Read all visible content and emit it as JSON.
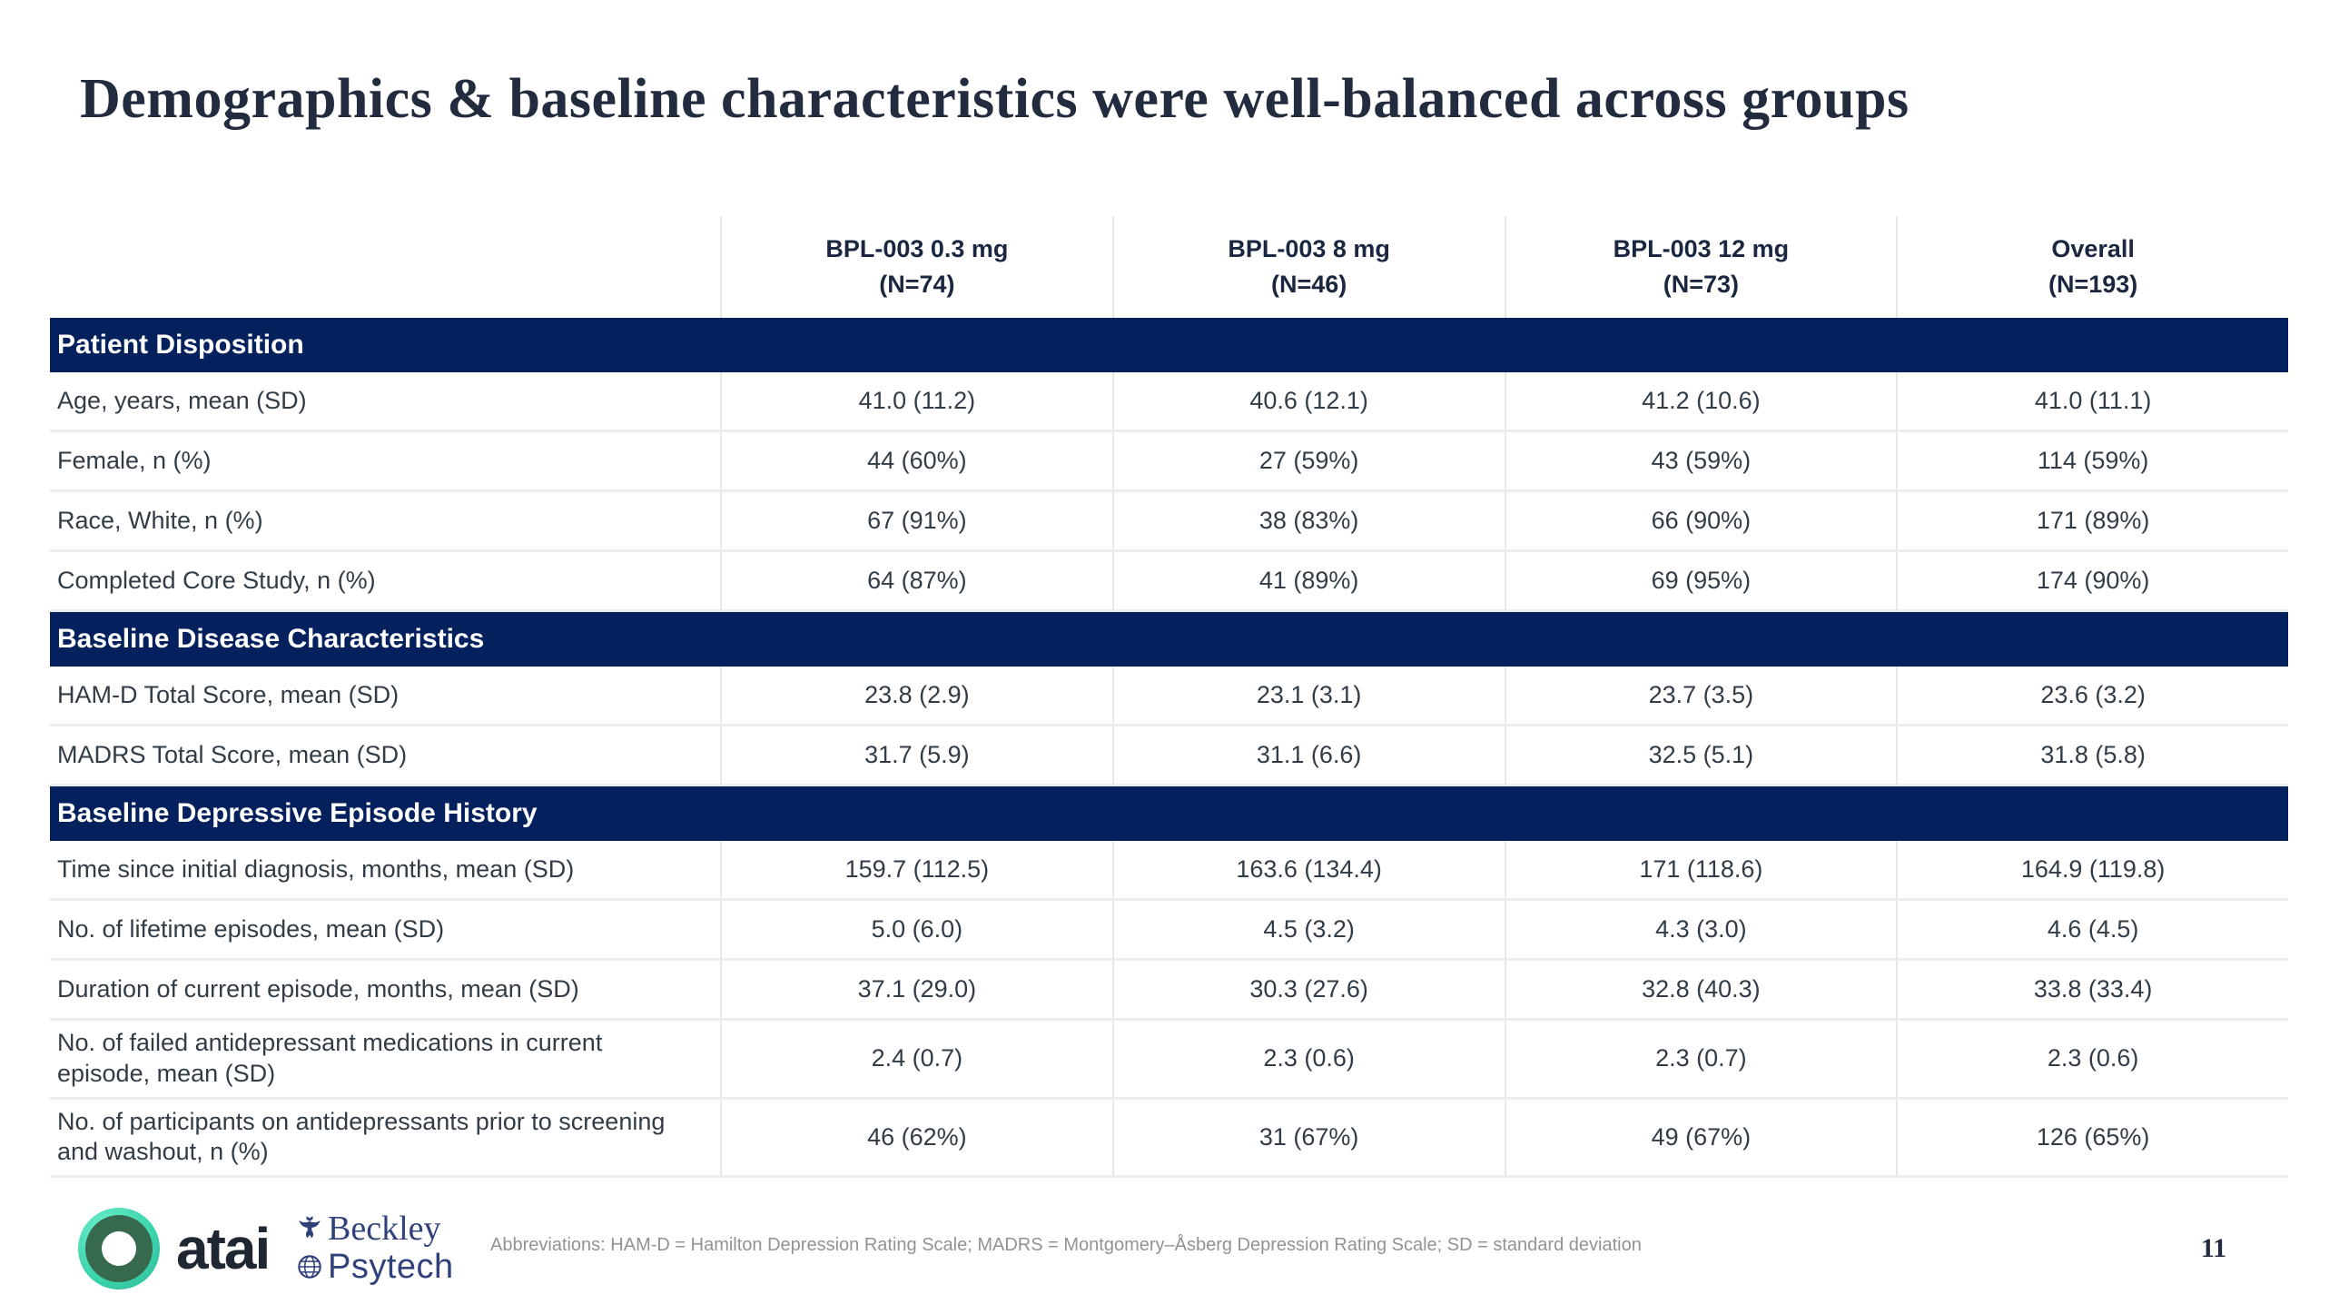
{
  "slide": {
    "title": "Demographics & baseline characteristics were well-balanced across groups",
    "page_number": "11",
    "footnote": "Abbreviations: HAM-D = Hamilton Depression Rating Scale; MADRS = Montgomery–Åsberg Depression Rating Scale; SD = standard deviation"
  },
  "logos": {
    "atai_wordmark": "atai",
    "beckley_line1": "Beckley",
    "beckley_line2": "Psytech"
  },
  "colors": {
    "section_band_navy": "#04215e",
    "title_text": "#222c3e",
    "body_text": "#323c47",
    "footnote_gray": "#8f9396",
    "beckley_navy": "#31417c",
    "atai_teal": "#3bd3ab",
    "atai_green": "#37694f"
  },
  "table": {
    "column_headers": [
      {
        "line1": "BPL-003 0.3 mg",
        "line2": "(N=74)"
      },
      {
        "line1": "BPL-003 8 mg",
        "line2": "(N=46)"
      },
      {
        "line1": "BPL-003 12 mg",
        "line2": "(N=73)"
      },
      {
        "line1": "Overall",
        "line2": "(N=193)"
      }
    ],
    "sections": [
      {
        "header": "Patient Disposition",
        "rows": [
          {
            "label": "Age, years, mean (SD)",
            "values": [
              "41.0 (11.2)",
              "40.6 (12.1)",
              "41.2 (10.6)",
              "41.0 (11.1)"
            ]
          },
          {
            "label": "Female, n (%)",
            "values": [
              "44 (60%)",
              "27 (59%)",
              "43 (59%)",
              "114 (59%)"
            ]
          },
          {
            "label": "Race, White, n (%)",
            "values": [
              "67 (91%)",
              "38 (83%)",
              "66 (90%)",
              "171 (89%)"
            ]
          },
          {
            "label": "Completed Core Study, n (%)",
            "values": [
              "64 (87%)",
              "41 (89%)",
              "69 (95%)",
              "174 (90%)"
            ]
          }
        ]
      },
      {
        "header": "Baseline Disease Characteristics",
        "rows": [
          {
            "label": "HAM-D Total Score, mean (SD)",
            "values": [
              "23.8 (2.9)",
              "23.1 (3.1)",
              "23.7 (3.5)",
              "23.6 (3.2)"
            ]
          },
          {
            "label": "MADRS Total Score, mean (SD)",
            "values": [
              "31.7 (5.9)",
              "31.1 (6.6)",
              "32.5 (5.1)",
              "31.8 (5.8)"
            ]
          }
        ]
      },
      {
        "header": "Baseline Depressive Episode History",
        "rows": [
          {
            "label": "Time since initial diagnosis, months, mean (SD)",
            "values": [
              "159.7 (112.5)",
              "163.6 (134.4)",
              "171 (118.6)",
              "164.9 (119.8)"
            ]
          },
          {
            "label": "No. of lifetime episodes, mean (SD)",
            "values": [
              "5.0 (6.0)",
              "4.5 (3.2)",
              "4.3 (3.0)",
              "4.6 (4.5)"
            ]
          },
          {
            "label": "Duration of current episode, months, mean (SD)",
            "values": [
              "37.1 (29.0)",
              "30.3 (27.6)",
              "32.8 (40.3)",
              "33.8 (33.4)"
            ]
          },
          {
            "label": "No. of failed antidepressant medications in current episode, mean (SD)",
            "values": [
              "2.4 (0.7)",
              "2.3 (0.6)",
              "2.3 (0.7)",
              "2.3 (0.6)"
            ]
          },
          {
            "label": "No. of participants on antidepressants prior to screening and washout, n (%)",
            "values": [
              "46 (62%)",
              "31 (67%)",
              "49 (67%)",
              "126 (65%)"
            ]
          }
        ]
      }
    ]
  }
}
